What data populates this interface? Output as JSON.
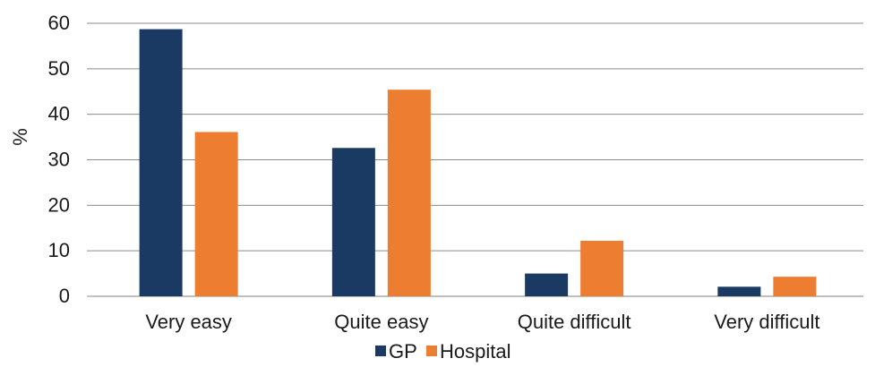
{
  "chart_data": {
    "type": "bar",
    "title": "",
    "xlabel": "",
    "ylabel": "%",
    "ylim": [
      0,
      60
    ],
    "yticks": [
      0,
      10,
      20,
      30,
      40,
      50,
      60
    ],
    "grid": true,
    "legend_position": "bottom",
    "categories": [
      "Very easy",
      "Quite easy",
      "Quite difficult",
      "Very difficult"
    ],
    "series": [
      {
        "name": "GP",
        "color": "#1b3a63",
        "values": [
          58.7,
          32.6,
          5.0,
          2.1
        ]
      },
      {
        "name": "Hospital",
        "color": "#ed7d31",
        "values": [
          36.1,
          45.4,
          12.2,
          4.3
        ]
      }
    ]
  }
}
